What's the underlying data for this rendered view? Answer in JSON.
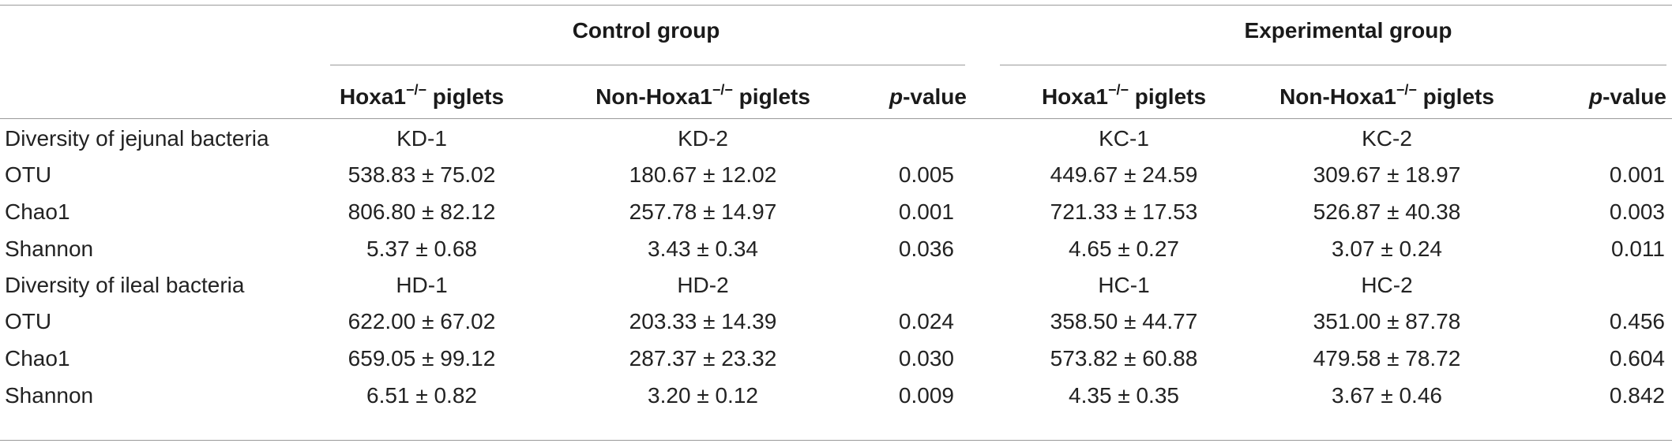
{
  "table": {
    "groups": [
      {
        "label": "Control group"
      },
      {
        "label": "Experimental group"
      }
    ],
    "columns": [
      {
        "base": "Hoxa1",
        "sup": "−/−",
        "suffix": " piglets"
      },
      {
        "base": "Non-Hoxa1",
        "sup": "−/−",
        "suffix": " piglets"
      },
      {
        "italic": "p",
        "suffix": "-value"
      },
      {
        "base": "Hoxa1",
        "sup": "−/−",
        "suffix": " piglets"
      },
      {
        "base": "Non-Hoxa1",
        "sup": "−/−",
        "suffix": " piglets"
      },
      {
        "italic": "p",
        "suffix": "-value"
      }
    ],
    "rows": [
      {
        "label": "Diversity of jejunal bacteria",
        "cells": [
          "KD-1",
          "KD-2",
          "",
          "KC-1",
          "KC-2",
          ""
        ]
      },
      {
        "label": "OTU",
        "cells": [
          "538.83 ± 75.02",
          "180.67 ± 12.02",
          "0.005",
          "449.67 ± 24.59",
          "309.67 ± 18.97",
          "0.001"
        ]
      },
      {
        "label": "Chao1",
        "cells": [
          "806.80 ± 82.12",
          "257.78 ± 14.97",
          "0.001",
          "721.33 ± 17.53",
          "526.87 ± 40.38",
          "0.003"
        ]
      },
      {
        "label": "Shannon",
        "cells": [
          "5.37 ± 0.68",
          "3.43 ± 0.34",
          "0.036",
          "4.65 ± 0.27",
          "3.07 ± 0.24",
          "0.011"
        ]
      },
      {
        "label": "Diversity of ileal bacteria",
        "cells": [
          "HD-1",
          "HD-2",
          "",
          "HC-1",
          "HC-2",
          ""
        ]
      },
      {
        "label": "OTU",
        "cells": [
          "622.00 ± 67.02",
          "203.33 ± 14.39",
          "0.024",
          "358.50 ± 44.77",
          "351.00 ± 87.78",
          "0.456"
        ]
      },
      {
        "label": "Chao1",
        "cells": [
          "659.05 ± 99.12",
          "287.37 ± 23.32",
          "0.030",
          "573.82 ± 60.88",
          "479.58 ± 78.72",
          "0.604"
        ]
      },
      {
        "label": "Shannon",
        "cells": [
          "6.51 ± 0.82",
          "3.20 ± 0.12",
          "0.009",
          "4.35 ± 0.35",
          "3.67 ± 0.46",
          "0.842"
        ]
      }
    ]
  }
}
